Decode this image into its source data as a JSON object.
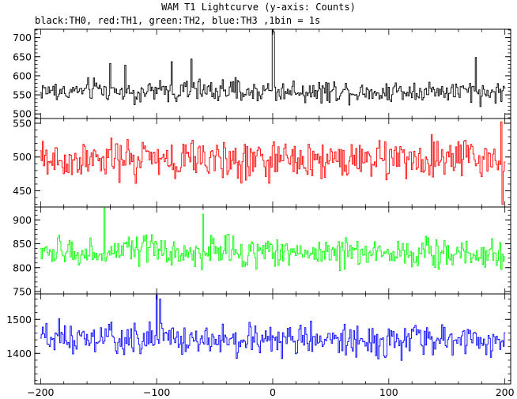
{
  "chart_data": {
    "type": "line",
    "title": "WAM T1 Lightcurve (y-axis: Counts)",
    "subtitle": "black:TH0, red:TH1, green:TH2, blue:TH3 ,1bin = 1s",
    "x_range": [
      -205,
      205
    ],
    "x_ticks": [
      -200,
      -100,
      0,
      100,
      200
    ],
    "x_tick_labels": [
      "−200",
      "−100",
      "0",
      "100",
      "200"
    ],
    "panels": [
      {
        "series": "TH0",
        "color": "#000000",
        "ylim": [
          488,
          722
        ],
        "yticks": [
          500,
          550,
          600,
          650,
          700
        ],
        "ytick_labels": [
          "500",
          "550",
          "600",
          "650",
          "700"
        ],
        "mean": 560,
        "noise": 24,
        "spikes": [
          [
            0,
            720
          ],
          [
            1,
            715
          ],
          [
            -140,
            632
          ],
          [
            -127,
            628
          ],
          [
            -87,
            637
          ],
          [
            -70,
            644
          ],
          [
            175,
            648
          ]
        ]
      },
      {
        "series": "TH1",
        "color": "#ff0000",
        "ylim": [
          426,
          557
        ],
        "yticks": [
          450,
          500,
          550
        ],
        "ytick_labels": [
          "450",
          "500",
          "550"
        ],
        "mean": 496,
        "noise": 26,
        "spikes": [
          [
            197,
            552
          ],
          [
            198,
            430
          ]
        ]
      },
      {
        "series": "TH2",
        "color": "#00ff00",
        "ylim": [
          745,
          927
        ],
        "yticks": [
          750,
          800,
          850,
          900
        ],
        "ytick_labels": [
          "750",
          "800",
          "850",
          "900"
        ],
        "mean": 832,
        "noise": 26,
        "spikes": [
          [
            -145,
            925
          ],
          [
            -60,
            912
          ]
        ]
      },
      {
        "series": "TH3",
        "color": "#0000ff",
        "ylim": [
          1310,
          1575
        ],
        "yticks": [
          1400,
          1500
        ],
        "ytick_labels": [
          "1400",
          "1500"
        ],
        "mean": 1440,
        "noise": 38,
        "spikes": [
          [
            -100,
            1572
          ],
          [
            -97,
            1560
          ]
        ]
      }
    ]
  }
}
